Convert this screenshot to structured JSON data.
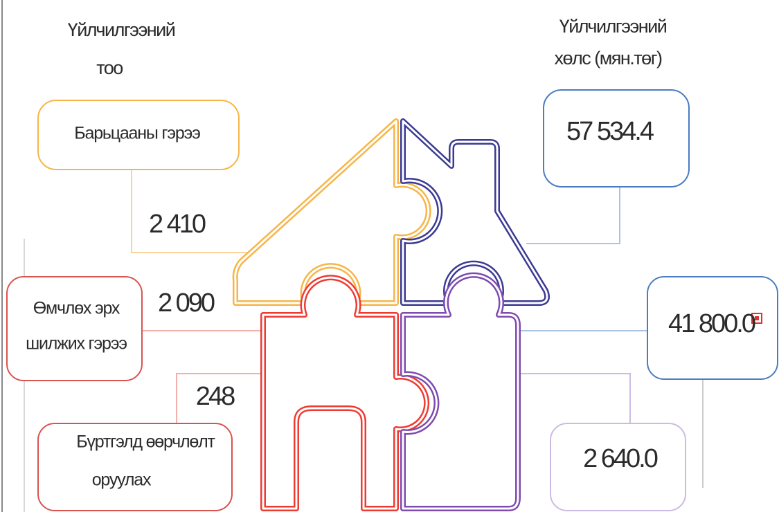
{
  "headers": {
    "count": [
      "Үйлчилгээний",
      "тоо"
    ],
    "fee": [
      "Үйлчилгээний",
      "хөлс (мян.төг)"
    ]
  },
  "items": [
    {
      "label": [
        "Барьцааны гэрээ"
      ],
      "count": "2 410",
      "fee": "57 534.4"
    },
    {
      "label": [
        "Өмчлөх эрх",
        "шилжих гэрээ"
      ],
      "count": "2 090",
      "fee": "41 800.0"
    },
    {
      "label": [
        "Бүртгэлд  өөрчлөлт",
        "оруулах"
      ],
      "count": "248",
      "fee": "2 640.0"
    }
  ]
}
